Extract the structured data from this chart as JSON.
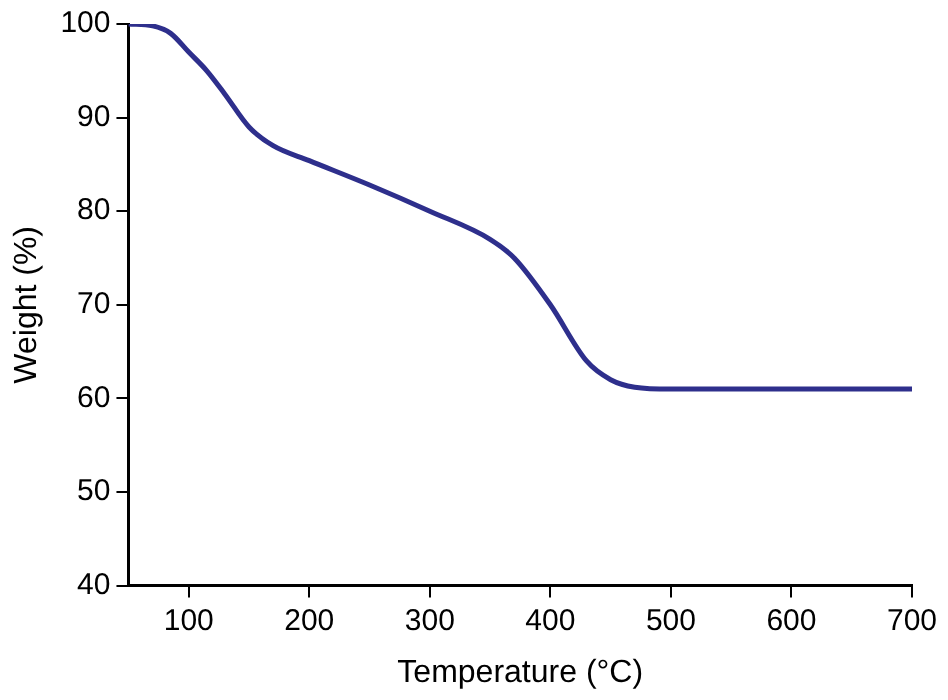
{
  "chart_data": {
    "type": "line",
    "xlabel": "Temperature (°C)",
    "ylabel": "Weight (%)",
    "x": [
      50,
      70,
      85,
      100,
      115,
      130,
      150,
      170,
      200,
      250,
      300,
      350,
      370,
      400,
      430,
      450,
      470,
      500,
      600,
      700
    ],
    "series": [
      {
        "color": "#2e2f8c",
        "values": [
          100,
          99.8,
          99,
          97,
          95,
          92.5,
          89,
          87,
          85.4,
          82.8,
          80,
          77,
          75,
          70,
          64,
          62,
          61.2,
          61,
          61,
          61
        ]
      }
    ],
    "xlim": [
      50,
      700
    ],
    "xticks": [
      100,
      200,
      300,
      400,
      500,
      600,
      700
    ],
    "ylim": [
      40,
      100
    ],
    "yticks": [
      40,
      50,
      60,
      70,
      80,
      90,
      100
    ],
    "grid": false,
    "legend": false,
    "marker": "none",
    "line_style": "solid"
  }
}
